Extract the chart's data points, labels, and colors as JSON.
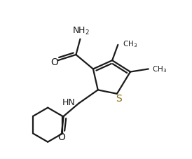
{
  "bg_color": "#ffffff",
  "line_color": "#1a1a1a",
  "bond_lw": 1.6,
  "s_color": "#8B6A10",
  "figsize": [
    2.74,
    2.28
  ],
  "dpi": 100,
  "xlim": [
    0,
    10
  ],
  "ylim": [
    0,
    8.33
  ]
}
